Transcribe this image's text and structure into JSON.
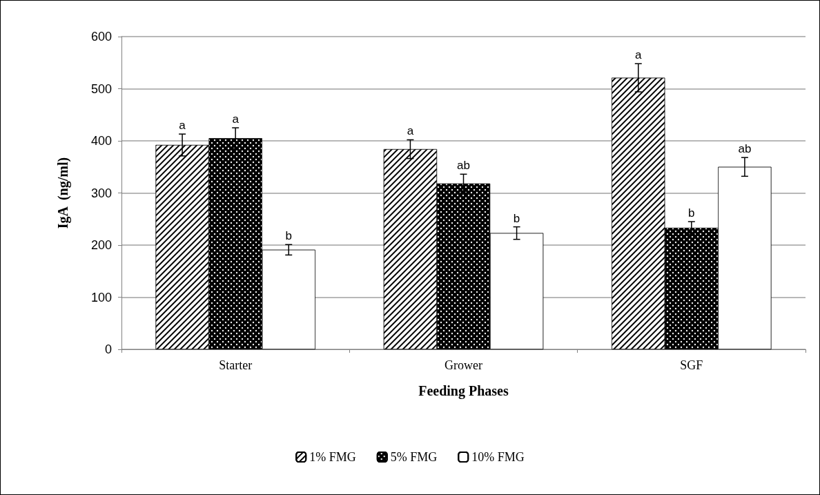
{
  "chart_data": {
    "type": "bar",
    "xlabel": "Feeding Phases",
    "ylabel": "IgA  (ng/ml)",
    "categories": [
      "Starter",
      "Grower",
      "SGF"
    ],
    "series": [
      {
        "name": "1% FMG",
        "color": "#ffffff",
        "values": [
          392,
          384,
          521
        ],
        "errors": [
          21,
          18,
          27
        ],
        "value_labels": [
          "a",
          "a",
          "a"
        ]
      },
      {
        "name": "5% FMG",
        "color": "#000000",
        "values": [
          405,
          318,
          233
        ],
        "errors": [
          20,
          18,
          12
        ],
        "value_labels": [
          "a",
          "ab",
          "b"
        ]
      },
      {
        "name": "10% FMG",
        "color": "#ffffff",
        "values": [
          191,
          223,
          350
        ],
        "errors": [
          10,
          12,
          18
        ],
        "value_labels": [
          "b",
          "b",
          "ab"
        ]
      }
    ],
    "ylim": [
      0,
      600
    ],
    "yticks": [
      0,
      100,
      200,
      300,
      400,
      500,
      600
    ],
    "grid": "y",
    "legend": "bottom"
  }
}
